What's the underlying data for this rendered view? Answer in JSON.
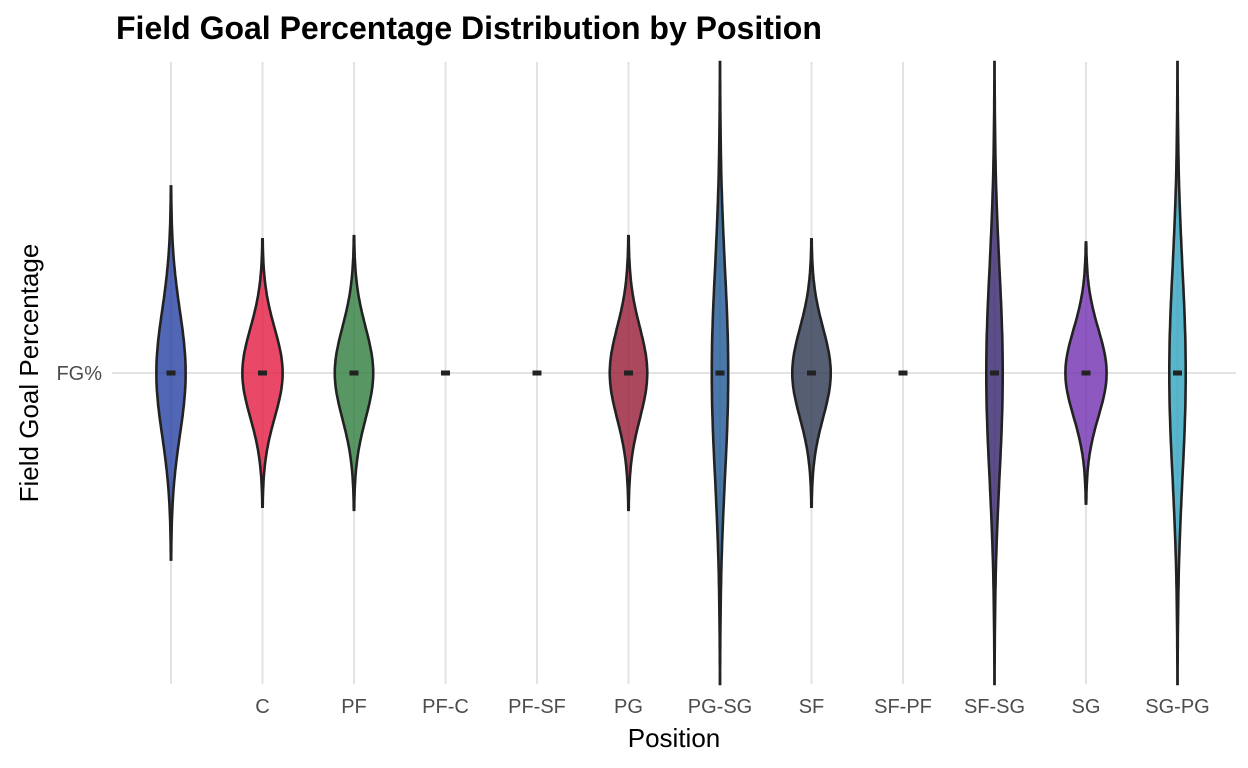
{
  "chart_data": {
    "type": "violin",
    "title": "Field Goal Percentage Distribution by Position",
    "xlabel": "Position",
    "ylabel": "Field Goal Percentage",
    "y_tick_labels": [
      "FG%"
    ],
    "categories": [
      "",
      "C",
      "PF",
      "PF-C",
      "PF-SF",
      "PG",
      "PG-SG",
      "SF",
      "SF-PF",
      "SF-SG",
      "SG",
      "SG-PG"
    ],
    "series": [
      {
        "category": "",
        "color": "#2541a3",
        "median": 0,
        "spread": [
          -0.6,
          0.6
        ],
        "max_halfwidth": 0.32
      },
      {
        "category": "C",
        "color": "#e31a40",
        "median": 0,
        "spread": [
          -0.43,
          0.43
        ],
        "max_halfwidth": 0.44
      },
      {
        "category": "PF",
        "color": "#2e7d3c",
        "median": 0,
        "spread": [
          -0.44,
          0.44
        ],
        "max_halfwidth": 0.42
      },
      {
        "category": "PF-C",
        "color": "#222222",
        "median": 0,
        "spread": [
          0,
          0
        ],
        "max_halfwidth": 0
      },
      {
        "category": "PF-SF",
        "color": "#222222",
        "median": 0,
        "spread": [
          0,
          0
        ],
        "max_halfwidth": 0
      },
      {
        "category": "PG",
        "color": "#961a35",
        "median": 0,
        "spread": [
          -0.44,
          0.44
        ],
        "max_halfwidth": 0.41
      },
      {
        "category": "PG-SG",
        "color": "#1d5694",
        "median": 0,
        "spread": [
          -1.0,
          1.0
        ],
        "max_halfwidth": 0.18
      },
      {
        "category": "SF",
        "color": "#2c3650",
        "median": 0,
        "spread": [
          -0.43,
          0.43
        ],
        "max_halfwidth": 0.42
      },
      {
        "category": "SF-PF",
        "color": "#222222",
        "median": 0,
        "spread": [
          0,
          0
        ],
        "max_halfwidth": 0
      },
      {
        "category": "SF-SG",
        "color": "#33236b",
        "median": 0,
        "spread": [
          -1.0,
          1.0
        ],
        "max_halfwidth": 0.18
      },
      {
        "category": "SG",
        "color": "#7030b0",
        "median": 0,
        "spread": [
          -0.42,
          0.42
        ],
        "max_halfwidth": 0.45
      },
      {
        "category": "SG-PG",
        "color": "#2ea2bd",
        "median": 0,
        "spread": [
          -1.0,
          1.0
        ],
        "max_halfwidth": 0.18
      }
    ],
    "grid": true,
    "legend": "none"
  }
}
